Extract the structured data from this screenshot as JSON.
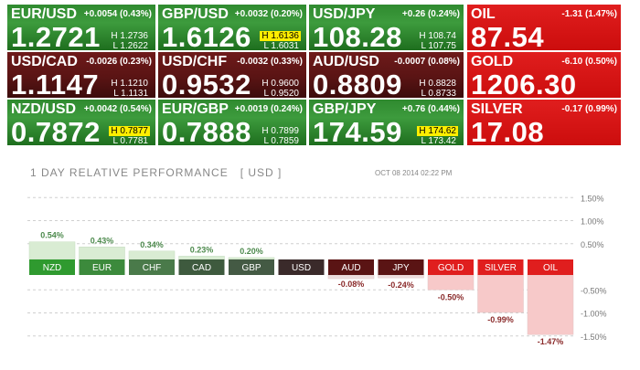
{
  "tiles": [
    {
      "sym": "EUR/USD",
      "chg": "+0.0054 (0.43%)",
      "price": "1.2721",
      "hi": "H 1.2736",
      "lo": "L 1.2622",
      "dir": "up",
      "hl": false
    },
    {
      "sym": "GBP/USD",
      "chg": "+0.0032 (0.20%)",
      "price": "1.6126",
      "hi": "H 1.6136",
      "lo": "L 1.6031",
      "dir": "up",
      "hl": true
    },
    {
      "sym": "USD/JPY",
      "chg": "+0.26 (0.24%)",
      "price": "108.28",
      "hi": "H 108.74",
      "lo": "L 107.75",
      "dir": "up",
      "hl": false
    },
    {
      "sym": "OIL",
      "chg": "-1.31 (1.47%)",
      "price": "87.54",
      "hi": "",
      "lo": "",
      "dir": "mt",
      "hl": false
    },
    {
      "sym": "USD/CAD",
      "chg": "-0.0026 (0.23%)",
      "price": "1.1147",
      "hi": "H 1.1210",
      "lo": "L 1.1131",
      "dir": "dn",
      "hl": false
    },
    {
      "sym": "USD/CHF",
      "chg": "-0.0032 (0.33%)",
      "price": "0.9532",
      "hi": "H 0.9600",
      "lo": "L 0.9520",
      "dir": "dn",
      "hl": false
    },
    {
      "sym": "AUD/USD",
      "chg": "-0.0007 (0.08%)",
      "price": "0.8809",
      "hi": "H 0.8828",
      "lo": "L 0.8733",
      "dir": "dn",
      "hl": false
    },
    {
      "sym": "GOLD",
      "chg": "-6.10 (0.50%)",
      "price": "1206.30",
      "hi": "",
      "lo": "",
      "dir": "mt",
      "hl": false
    },
    {
      "sym": "NZD/USD",
      "chg": "+0.0042 (0.54%)",
      "price": "0.7872",
      "hi": "H 0.7877",
      "lo": "L 0.7781",
      "dir": "up",
      "hl": true
    },
    {
      "sym": "EUR/GBP",
      "chg": "+0.0019 (0.24%)",
      "price": "0.7888",
      "hi": "H 0.7899",
      "lo": "L 0.7859",
      "dir": "up",
      "hl": false
    },
    {
      "sym": "GBP/JPY",
      "chg": "+0.76 (0.44%)",
      "price": "174.59",
      "hi": "H 174.62",
      "lo": "L 173.42",
      "dir": "up",
      "hl": true
    },
    {
      "sym": "SILVER",
      "chg": "-0.17 (0.99%)",
      "price": "17.08",
      "hi": "",
      "lo": "",
      "dir": "mt",
      "hl": false
    }
  ],
  "chart": {
    "title": "1 DAY RELATIVE PERFORMANCE   [ USD ]",
    "timestamp": "OCT 08 2014 02:22 PM"
  },
  "colors": {
    "up": "#3d9b3d",
    "down": "#5a1414",
    "metal": "#e01e1e",
    "pos_bar": "#d9ecd3",
    "neg_bar": "#eddede",
    "neg_bar_metal": "#f7c9c9"
  },
  "chart_data": {
    "type": "bar",
    "categories": [
      "NZD",
      "EUR",
      "CHF",
      "CAD",
      "GBP",
      "USD",
      "AUD",
      "JPY",
      "GOLD",
      "SILVER",
      "OIL"
    ],
    "values": [
      0.54,
      0.43,
      0.34,
      0.23,
      0.2,
      0.0,
      -0.08,
      -0.24,
      -0.5,
      -0.99,
      -1.47
    ],
    "value_labels": [
      "0.54%",
      "0.43%",
      "0.34%",
      "0.23%",
      "0.20%",
      "",
      "-0.08%",
      "-0.24%",
      "-0.50%",
      "-0.99%",
      "-1.47%"
    ],
    "title": "1 DAY RELATIVE PERFORMANCE   [ USD ]",
    "xlabel": "",
    "ylabel": "",
    "ylim": [
      -1.5,
      1.5
    ],
    "yticks": [
      1.5,
      1.0,
      0.5,
      -0.5,
      -1.0,
      -1.5
    ],
    "ytick_labels": [
      "1.50%",
      "1.00%",
      "0.50%",
      "-0.50%",
      "-1.00%",
      "-1.50%"
    ],
    "grid": true,
    "legend": "none"
  }
}
